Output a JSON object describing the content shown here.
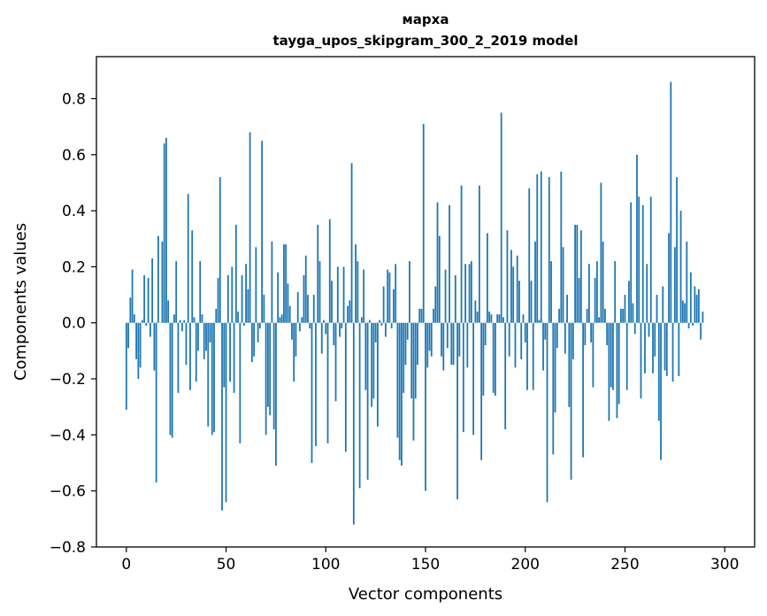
{
  "chart_data": {
    "type": "bar",
    "title_line1": "марха",
    "title_line2": "tayga_upos_skipgram_300_2_2019 model",
    "xlabel": "Vector components",
    "ylabel": "Components values",
    "xlim": [
      -15,
      315
    ],
    "ylim": [
      -0.8,
      0.95
    ],
    "x_ticks": [
      0,
      50,
      100,
      150,
      200,
      250,
      300
    ],
    "x_tick_labels": [
      "0",
      "50",
      "100",
      "150",
      "200",
      "250",
      "300"
    ],
    "y_ticks": [
      -0.8,
      -0.6,
      -0.4,
      -0.2,
      0.0,
      0.2,
      0.4,
      0.6,
      0.8
    ],
    "y_tick_labels": [
      "−0.8",
      "−0.6",
      "−0.4",
      "−0.2",
      "0.0",
      "0.2",
      "0.4",
      "0.6",
      "0.8"
    ],
    "bar_color": "#1f77b4",
    "values": [
      -0.31,
      -0.09,
      0.09,
      0.19,
      0.03,
      -0.13,
      -0.2,
      -0.16,
      0.01,
      0.17,
      -0.01,
      0.16,
      -0.05,
      0.23,
      -0.17,
      -0.57,
      0.31,
      0.0,
      0.29,
      0.64,
      0.66,
      0.08,
      -0.4,
      -0.41,
      0.03,
      0.22,
      -0.25,
      0.01,
      -0.03,
      0.01,
      -0.15,
      0.46,
      -0.24,
      0.33,
      0.02,
      -0.21,
      -0.1,
      0.22,
      0.03,
      -0.13,
      -0.1,
      -0.37,
      -0.07,
      -0.4,
      -0.39,
      0.05,
      0.16,
      0.52,
      -0.67,
      -0.23,
      -0.64,
      0.17,
      -0.21,
      0.2,
      -0.25,
      0.35,
      0.04,
      -0.43,
      0.17,
      -0.01,
      0.21,
      0.12,
      0.68,
      -0.14,
      -0.12,
      0.27,
      -0.07,
      -0.02,
      0.65,
      0.1,
      -0.4,
      -0.3,
      -0.33,
      0.29,
      -0.38,
      -0.51,
      0.18,
      0.02,
      0.03,
      0.28,
      0.28,
      0.14,
      0.06,
      -0.06,
      -0.21,
      -0.12,
      0.11,
      -0.03,
      0.02,
      0.17,
      0.24,
      0.1,
      -0.02,
      -0.5,
      0.1,
      -0.44,
      0.35,
      0.22,
      -0.11,
      0.01,
      -0.04,
      -0.43,
      0.37,
      0.15,
      -0.08,
      -0.28,
      0.2,
      -0.05,
      -0.02,
      0.2,
      -0.46,
      0.06,
      0.08,
      0.57,
      -0.72,
      0.28,
      0.22,
      -0.59,
      0.02,
      0.19,
      -0.24,
      -0.56,
      0.01,
      -0.3,
      -0.27,
      -0.07,
      -0.37,
      0.01,
      -0.01,
      0.13,
      -0.05,
      0.19,
      0.18,
      -0.02,
      0.12,
      0.21,
      -0.41,
      -0.49,
      -0.51,
      -0.25,
      -0.15,
      -0.06,
      0.22,
      -0.27,
      -0.42,
      -0.27,
      -0.15,
      0.05,
      0.05,
      0.71,
      -0.6,
      -0.16,
      -0.1,
      -0.12,
      0.05,
      0.13,
      0.43,
      0.31,
      -0.12,
      -0.17,
      0.19,
      -0.09,
      0.42,
      -0.15,
      -0.15,
      0.17,
      -0.63,
      -0.12,
      0.49,
      -0.39,
      0.21,
      -0.16,
      0.21,
      0.22,
      -0.4,
      0.08,
      0.04,
      0.49,
      -0.49,
      -0.26,
      -0.08,
      0.32,
      0.04,
      0.03,
      -0.25,
      -0.26,
      0.03,
      0.03,
      0.75,
      0.02,
      -0.38,
      0.33,
      -0.12,
      0.26,
      0.2,
      -0.16,
      0.24,
      0.15,
      -0.13,
      0.03,
      -0.07,
      -0.24,
      0.48,
      0.15,
      -0.24,
      0.29,
      0.53,
      0.01,
      0.54,
      -0.17,
      -0.06,
      -0.64,
      0.52,
      0.22,
      -0.47,
      -0.32,
      -0.09,
      0.05,
      0.54,
      0.27,
      -0.11,
      0.1,
      -0.3,
      -0.56,
      -0.13,
      0.35,
      0.35,
      0.16,
      0.33,
      -0.48,
      -0.08,
      0.05,
      0.21,
      -0.07,
      -0.23,
      0.16,
      0.22,
      0.02,
      0.5,
      0.29,
      0.05,
      -0.08,
      -0.35,
      -0.23,
      -0.24,
      0.22,
      -0.34,
      -0.29,
      0.05,
      0.05,
      0.1,
      -0.24,
      0.15,
      0.43,
      0.07,
      -0.04,
      0.6,
      0.45,
      -0.27,
      0.42,
      -0.18,
      0.21,
      -0.05,
      0.45,
      -0.18,
      -0.12,
      0.1,
      -0.35,
      -0.49,
      0.13,
      -0.17,
      -0.19,
      0.32,
      0.86,
      -0.21,
      0.27,
      0.52,
      -0.19,
      0.4,
      0.08,
      0.07,
      0.29,
      -0.02,
      0.18,
      -0.01,
      0.13,
      0.1,
      0.12,
      -0.06,
      0.04
    ]
  }
}
